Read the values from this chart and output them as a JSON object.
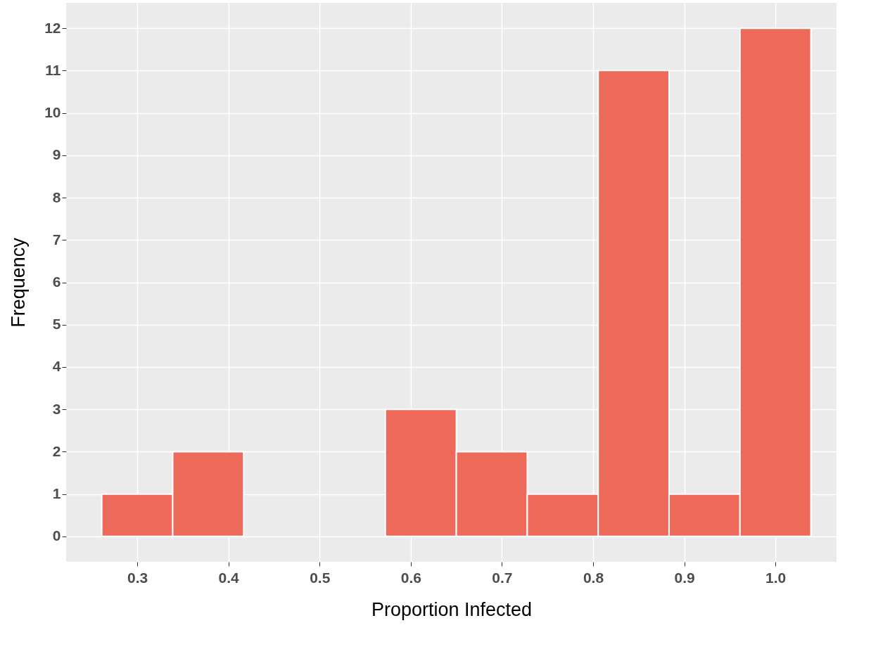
{
  "chart_data": {
    "type": "histogram",
    "xlabel": "Proportion Infected",
    "ylabel": "Frequency",
    "bins": [
      0.2611,
      0.3389,
      0.4167,
      0.4944,
      0.5722,
      0.65,
      0.7278,
      0.8056,
      0.8833,
      0.9611,
      1.0389
    ],
    "values": [
      1,
      2,
      0,
      0,
      3,
      2,
      1,
      11,
      1,
      12
    ],
    "color": "#ed6a5a",
    "xlim": [
      0.222,
      1.067
    ],
    "xticks": [
      {
        "value": 0.3,
        "label": "0.3"
      },
      {
        "value": 0.4,
        "label": "0.4"
      },
      {
        "value": 0.5,
        "label": "0.5"
      },
      {
        "value": 0.6,
        "label": "0.6"
      },
      {
        "value": 0.7,
        "label": "0.7"
      },
      {
        "value": 0.8,
        "label": "0.8"
      },
      {
        "value": 0.9,
        "label": "0.9"
      },
      {
        "value": 1.0,
        "label": "1.0"
      }
    ],
    "ylim": [
      -0.6,
      12.6
    ],
    "yticks": [
      0,
      1,
      2,
      3,
      4,
      5,
      6,
      7,
      8,
      9,
      10,
      11,
      12
    ],
    "grid": true
  }
}
